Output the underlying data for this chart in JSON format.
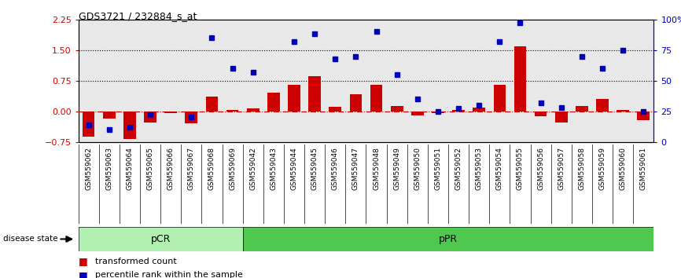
{
  "title": "GDS3721 / 232884_s_at",
  "categories": [
    "GSM559062",
    "GSM559063",
    "GSM559064",
    "GSM559065",
    "GSM559066",
    "GSM559067",
    "GSM559068",
    "GSM559069",
    "GSM559042",
    "GSM559043",
    "GSM559044",
    "GSM559045",
    "GSM559046",
    "GSM559047",
    "GSM559048",
    "GSM559049",
    "GSM559050",
    "GSM559051",
    "GSM559052",
    "GSM559053",
    "GSM559054",
    "GSM559055",
    "GSM559056",
    "GSM559057",
    "GSM559058",
    "GSM559059",
    "GSM559060",
    "GSM559061"
  ],
  "red_bars": [
    -0.62,
    -0.18,
    -0.68,
    -0.28,
    -0.04,
    -0.3,
    0.35,
    0.04,
    0.07,
    0.45,
    0.65,
    0.85,
    0.1,
    0.42,
    0.65,
    0.12,
    -0.1,
    -0.05,
    0.03,
    0.08,
    0.65,
    1.6,
    -0.12,
    -0.28,
    0.13,
    0.3,
    0.04,
    -0.22
  ],
  "blue_pct": [
    14,
    10,
    12,
    22,
    null,
    20,
    85,
    60,
    57,
    null,
    82,
    88,
    68,
    70,
    90,
    55,
    35,
    25,
    27,
    30,
    82,
    97,
    32,
    28,
    70,
    60,
    75,
    25
  ],
  "group1_label": "pCR",
  "group2_label": "pPR",
  "group1_count": 8,
  "legend_label1": "transformed count",
  "legend_label2": "percentile rank within the sample",
  "ylim": [
    -0.75,
    2.25
  ],
  "y2lim": [
    0,
    100
  ],
  "yticks": [
    -0.75,
    0,
    0.75,
    1.5,
    2.25
  ],
  "y2ticks": [
    0,
    25,
    50,
    75,
    100
  ],
  "hlines": [
    0.75,
    1.5
  ],
  "bar_color": "#cc0000",
  "square_color": "#0000bb",
  "bg_color": "#ffffff",
  "axis_bg": "#e8e8e8",
  "group1_color": "#b2f0b2",
  "group2_color": "#50c850"
}
